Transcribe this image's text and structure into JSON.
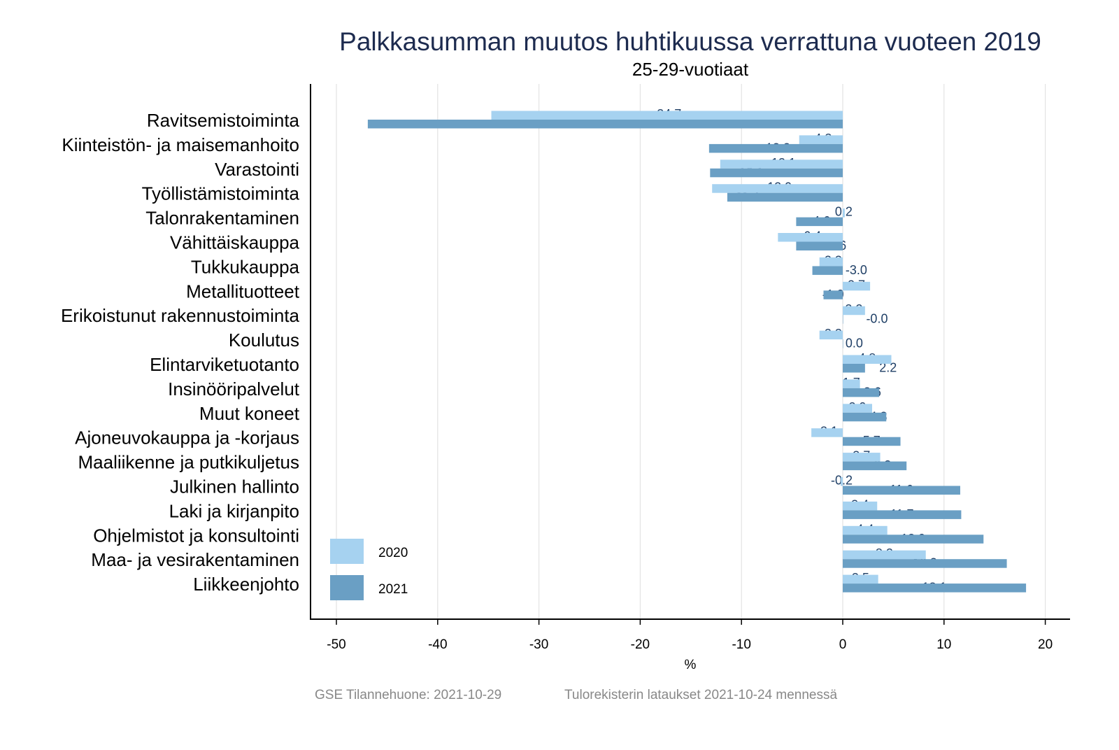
{
  "chart_data": {
    "type": "bar",
    "orientation": "horizontal",
    "title": "Palkkasumman muutos huhtikuussa verrattuna vuoteen 2019",
    "subtitle": "25-29-vuotiaat",
    "xlabel": "%",
    "ylabel": "",
    "xlim": [
      -52.5,
      22.5
    ],
    "xticks": [
      -50,
      -40,
      -30,
      -20,
      -10,
      0,
      10,
      20
    ],
    "grid": true,
    "legend_position": "bottom-left",
    "categories": [
      "Ravitsemistoiminta",
      "Kiinteistön- ja maisemanhoito",
      "Varastointi",
      "Työllistämistoiminta",
      "Talonrakentaminen",
      "Vähittäiskauppa",
      "Tukkukauppa",
      "Metallituotteet",
      "Erikoistunut rakennustoiminta",
      "Koulutus",
      "Elintarviketuotanto",
      "Insinööripalvelut",
      "Muut koneet",
      "Ajoneuvokauppa ja -korjaus",
      "Maaliikenne ja putkikuljetus",
      "Julkinen hallinto",
      "Laki ja kirjanpito",
      "Ohjelmistot ja konsultointi",
      "Maa- ja vesirakentaminen",
      "Liikkeenjohto"
    ],
    "series": [
      {
        "name": "2020",
        "color": "#a6d2f0",
        "values": [
          -34.7,
          -4.3,
          -12.1,
          -12.9,
          0.2,
          -6.4,
          -2.3,
          2.7,
          2.2,
          -2.3,
          4.8,
          1.7,
          2.9,
          -3.1,
          3.7,
          -0.2,
          3.4,
          4.4,
          8.2,
          3.5
        ],
        "labels": [
          "-34.7",
          "-4.3",
          "-12.1",
          "-12.9",
          "0.2",
          "-6.4",
          "-2.3",
          "2.7",
          "2.2",
          "-2.3",
          "4.8",
          "1.7",
          "2.9",
          "-3.1",
          "3.7",
          "-0.2",
          "3.4",
          "4.4",
          "8.2",
          "3.5"
        ]
      },
      {
        "name": "2021",
        "color": "#6a9fc4",
        "values": [
          -46.9,
          -13.2,
          -13.1,
          -11.4,
          -4.6,
          -4.6,
          -3.0,
          -1.9,
          -0.0,
          0.0,
          2.2,
          3.6,
          4.3,
          5.7,
          6.3,
          11.6,
          11.7,
          13.9,
          16.2,
          18.1
        ],
        "labels": [
          "-46.9",
          "-13.2",
          "-13.1",
          "-11.4",
          "-4.6",
          "-4.6",
          "-3.0",
          "-1.9",
          "-0.0",
          "0.0",
          "2.2",
          "3.6",
          "4.3",
          "5.7",
          "6.3",
          "11.6",
          "11.7",
          "13.9",
          "16.2",
          "18.1"
        ]
      }
    ]
  },
  "footer": {
    "source": "GSE Tilannehuone: 2021-10-29",
    "note": "Tulorekisterin lataukset 2021-10-24 mennessä"
  }
}
